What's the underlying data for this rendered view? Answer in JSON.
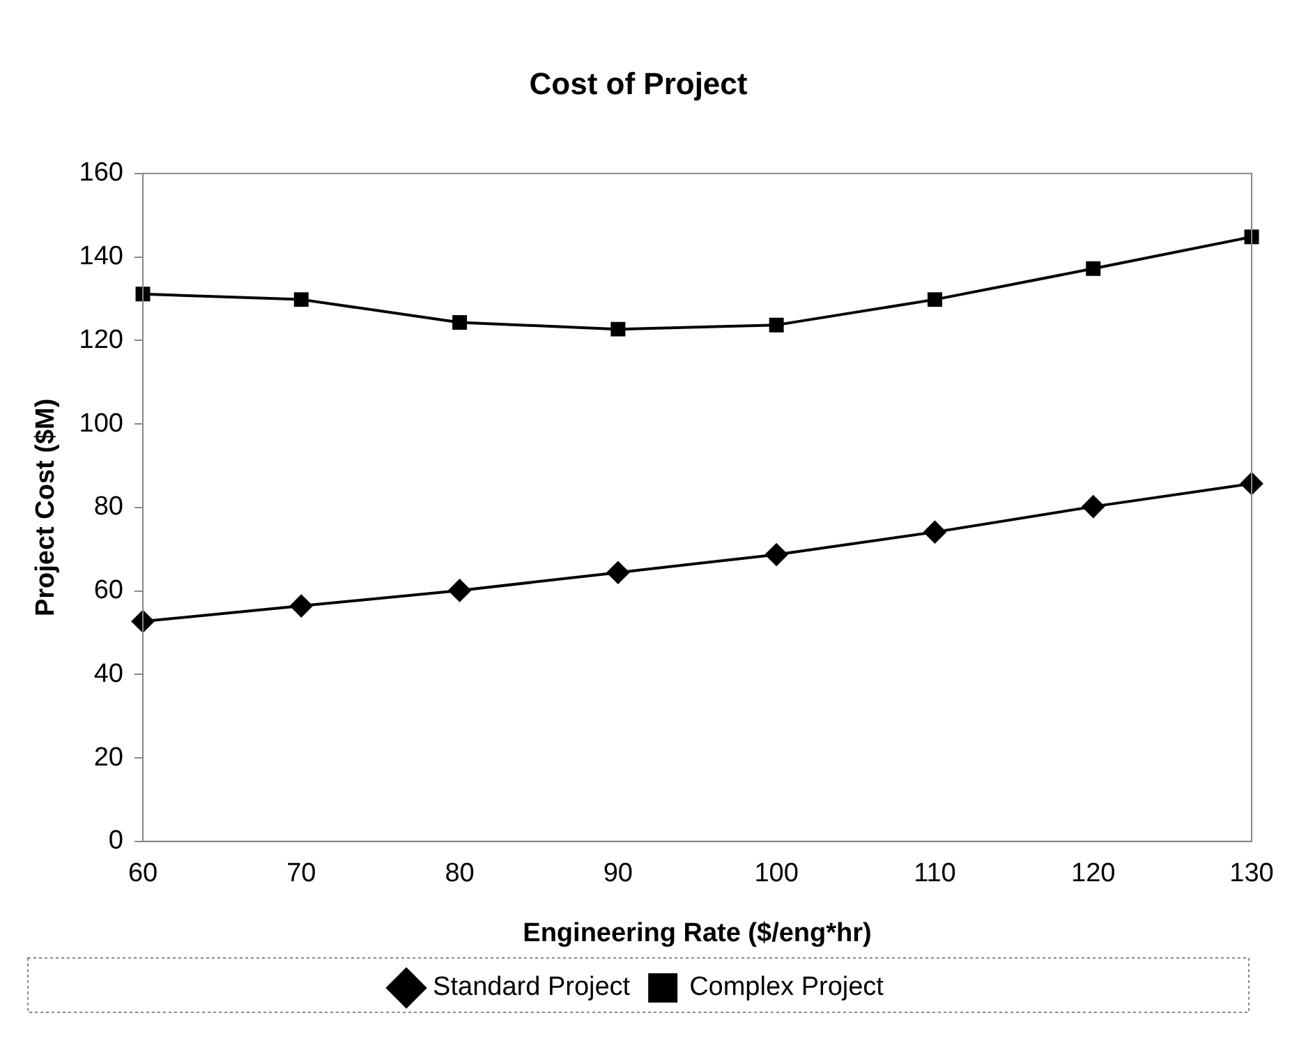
{
  "chart_data": {
    "type": "line",
    "title": "Cost of Project",
    "xlabel": "Engineering Rate ($/eng*hr)",
    "ylabel": "Project Cost ($M)",
    "categories": [
      "60",
      "70",
      "80",
      "90",
      "100",
      "110",
      "120",
      "130"
    ],
    "series": [
      {
        "name": "Standard Project",
        "color": "#000000",
        "marker": "diamond",
        "values": [
          52.7,
          56.4,
          60.1,
          64.4,
          68.7,
          74.1,
          80.2,
          85.7
        ]
      },
      {
        "name": "Complex Project",
        "color": "#000000",
        "marker": "square",
        "values": [
          131.1,
          129.8,
          124.3,
          122.7,
          123.7,
          129.8,
          137.2,
          144.8
        ]
      }
    ],
    "ylim": [
      0,
      160
    ],
    "yticks": [
      0,
      20,
      40,
      60,
      80,
      100,
      120,
      140,
      160
    ],
    "grid": false,
    "legend": "bottom",
    "line_style": "solid"
  }
}
